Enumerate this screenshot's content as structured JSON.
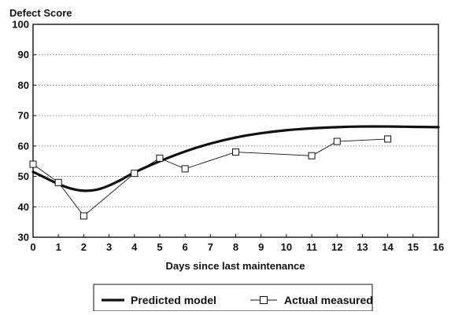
{
  "chart_data": {
    "type": "line",
    "ylabel": "Defect Score",
    "xlabel": "Days since last maintenance",
    "xlim": [
      0,
      16
    ],
    "ylim": [
      30,
      100
    ],
    "x_ticks": [
      0,
      1,
      2,
      3,
      4,
      5,
      6,
      7,
      8,
      9,
      10,
      11,
      12,
      13,
      14,
      15,
      16
    ],
    "y_ticks": [
      30,
      40,
      50,
      60,
      70,
      80,
      90,
      100
    ],
    "grid": "horizontal dotted",
    "legend_position": "bottom",
    "series": [
      {
        "name": "Predicted model",
        "style": "thick-smooth-line",
        "color": "#111111",
        "points": [
          [
            0,
            51.5
          ],
          [
            0.5,
            49.5
          ],
          [
            1,
            47.5
          ],
          [
            1.5,
            46
          ],
          [
            2,
            45.3
          ],
          [
            2.5,
            45.6
          ],
          [
            3,
            47
          ],
          [
            3.5,
            49
          ],
          [
            4,
            51.3
          ],
          [
            5,
            55
          ],
          [
            6,
            58.2
          ],
          [
            7,
            60.8
          ],
          [
            8,
            62.8
          ],
          [
            9,
            64.2
          ],
          [
            10,
            65.2
          ],
          [
            11,
            65.8
          ],
          [
            12,
            66.2
          ],
          [
            13,
            66.4
          ],
          [
            14,
            66.4
          ],
          [
            15,
            66.3
          ],
          [
            16,
            66.2
          ]
        ]
      },
      {
        "name": "Actual measured",
        "style": "thin-line-square-markers",
        "color": "#111111",
        "points": [
          [
            0,
            54
          ],
          [
            1,
            48
          ],
          [
            2,
            37
          ],
          [
            4,
            51
          ],
          [
            5,
            56
          ],
          [
            6,
            52.5
          ],
          [
            8,
            58
          ],
          [
            11,
            56.8
          ],
          [
            12,
            61.5
          ],
          [
            14,
            62.3
          ]
        ]
      }
    ]
  }
}
